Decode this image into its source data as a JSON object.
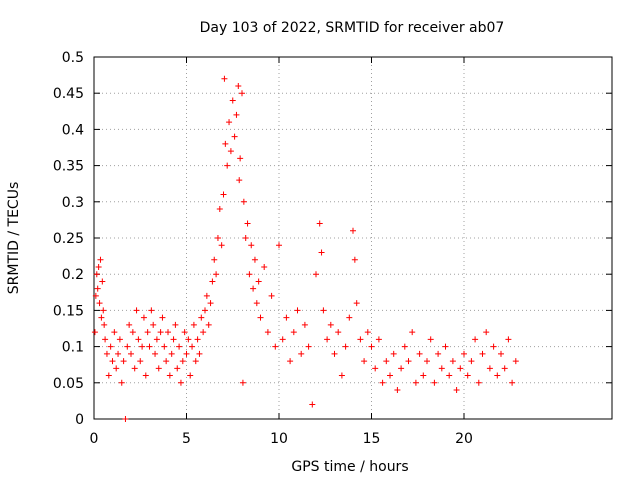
{
  "chart_data": {
    "type": "scatter",
    "title": "Day 103 of 2022, SRMTID for receiver ab07",
    "xlabel": "GPS time / hours",
    "ylabel": "SRMTID / TECUs",
    "xlim": [
      0,
      28
    ],
    "ylim": [
      0,
      0.5
    ],
    "xticks": [
      0,
      5,
      10,
      15,
      20
    ],
    "xtick_labels": [
      "0",
      "5",
      "10",
      "15",
      "20"
    ],
    "yticks": [
      0,
      0.05,
      0.1,
      0.15,
      0.2,
      0.25,
      0.3,
      0.35,
      0.4,
      0.45,
      0.5
    ],
    "ytick_labels": [
      "0",
      "0.05",
      "0.1",
      "0.15",
      "0.2",
      "0.25",
      "0.3",
      "0.35",
      "0.4",
      "0.45",
      "0.5"
    ],
    "grid": true,
    "marker": "+",
    "color": "#ff0000",
    "series": [
      {
        "name": "SRMTID ab07",
        "points": [
          [
            0.05,
            0.12
          ],
          [
            0.1,
            0.17
          ],
          [
            0.15,
            0.2
          ],
          [
            0.2,
            0.18
          ],
          [
            0.25,
            0.21
          ],
          [
            0.3,
            0.16
          ],
          [
            0.35,
            0.22
          ],
          [
            0.4,
            0.14
          ],
          [
            0.45,
            0.19
          ],
          [
            0.5,
            0.15
          ],
          [
            0.55,
            0.13
          ],
          [
            0.6,
            0.11
          ],
          [
            0.7,
            0.09
          ],
          [
            0.8,
            0.06
          ],
          [
            0.9,
            0.1
          ],
          [
            1.0,
            0.08
          ],
          [
            1.1,
            0.12
          ],
          [
            1.2,
            0.07
          ],
          [
            1.3,
            0.09
          ],
          [
            1.4,
            0.11
          ],
          [
            1.5,
            0.05
          ],
          [
            1.6,
            0.08
          ],
          [
            1.7,
            0.0
          ],
          [
            1.8,
            0.1
          ],
          [
            1.9,
            0.13
          ],
          [
            2.0,
            0.09
          ],
          [
            2.1,
            0.12
          ],
          [
            2.2,
            0.07
          ],
          [
            2.3,
            0.15
          ],
          [
            2.4,
            0.11
          ],
          [
            2.5,
            0.08
          ],
          [
            2.6,
            0.1
          ],
          [
            2.7,
            0.14
          ],
          [
            2.8,
            0.06
          ],
          [
            2.9,
            0.12
          ],
          [
            3.0,
            0.1
          ],
          [
            3.1,
            0.15
          ],
          [
            3.2,
            0.13
          ],
          [
            3.3,
            0.09
          ],
          [
            3.4,
            0.11
          ],
          [
            3.5,
            0.07
          ],
          [
            3.6,
            0.12
          ],
          [
            3.7,
            0.14
          ],
          [
            3.8,
            0.1
          ],
          [
            3.9,
            0.08
          ],
          [
            4.0,
            0.12
          ],
          [
            4.1,
            0.06
          ],
          [
            4.2,
            0.09
          ],
          [
            4.3,
            0.11
          ],
          [
            4.4,
            0.13
          ],
          [
            4.5,
            0.07
          ],
          [
            4.6,
            0.1
          ],
          [
            4.7,
            0.05
          ],
          [
            4.8,
            0.08
          ],
          [
            4.9,
            0.12
          ],
          [
            5.0,
            0.09
          ],
          [
            5.1,
            0.11
          ],
          [
            5.2,
            0.06
          ],
          [
            5.3,
            0.1
          ],
          [
            5.4,
            0.13
          ],
          [
            5.5,
            0.08
          ],
          [
            5.6,
            0.11
          ],
          [
            5.7,
            0.09
          ],
          [
            5.8,
            0.14
          ],
          [
            5.9,
            0.12
          ],
          [
            6.0,
            0.15
          ],
          [
            6.1,
            0.17
          ],
          [
            6.2,
            0.13
          ],
          [
            6.3,
            0.16
          ],
          [
            6.4,
            0.19
          ],
          [
            6.5,
            0.22
          ],
          [
            6.6,
            0.2
          ],
          [
            6.7,
            0.25
          ],
          [
            6.8,
            0.29
          ],
          [
            6.9,
            0.24
          ],
          [
            7.0,
            0.31
          ],
          [
            7.05,
            0.47
          ],
          [
            7.1,
            0.38
          ],
          [
            7.2,
            0.35
          ],
          [
            7.3,
            0.41
          ],
          [
            7.4,
            0.37
          ],
          [
            7.5,
            0.44
          ],
          [
            7.6,
            0.39
          ],
          [
            7.7,
            0.42
          ],
          [
            7.8,
            0.46
          ],
          [
            7.85,
            0.33
          ],
          [
            7.9,
            0.36
          ],
          [
            8.0,
            0.45
          ],
          [
            8.05,
            0.05
          ],
          [
            8.1,
            0.3
          ],
          [
            8.2,
            0.25
          ],
          [
            8.3,
            0.27
          ],
          [
            8.4,
            0.2
          ],
          [
            8.5,
            0.24
          ],
          [
            8.6,
            0.18
          ],
          [
            8.7,
            0.22
          ],
          [
            8.8,
            0.16
          ],
          [
            8.9,
            0.19
          ],
          [
            9.0,
            0.14
          ],
          [
            9.2,
            0.21
          ],
          [
            9.4,
            0.12
          ],
          [
            9.6,
            0.17
          ],
          [
            9.8,
            0.1
          ],
          [
            10.0,
            0.24
          ],
          [
            10.2,
            0.11
          ],
          [
            10.4,
            0.14
          ],
          [
            10.6,
            0.08
          ],
          [
            10.8,
            0.12
          ],
          [
            11.0,
            0.15
          ],
          [
            11.2,
            0.09
          ],
          [
            11.4,
            0.13
          ],
          [
            11.6,
            0.1
          ],
          [
            11.8,
            0.02
          ],
          [
            12.0,
            0.2
          ],
          [
            12.2,
            0.27
          ],
          [
            12.3,
            0.23
          ],
          [
            12.4,
            0.15
          ],
          [
            12.6,
            0.11
          ],
          [
            12.8,
            0.13
          ],
          [
            13.0,
            0.09
          ],
          [
            13.2,
            0.12
          ],
          [
            13.4,
            0.06
          ],
          [
            13.6,
            0.1
          ],
          [
            13.8,
            0.14
          ],
          [
            14.0,
            0.26
          ],
          [
            14.1,
            0.22
          ],
          [
            14.2,
            0.16
          ],
          [
            14.4,
            0.11
          ],
          [
            14.6,
            0.08
          ],
          [
            14.8,
            0.12
          ],
          [
            15.0,
            0.1
          ],
          [
            15.2,
            0.07
          ],
          [
            15.4,
            0.11
          ],
          [
            15.6,
            0.05
          ],
          [
            15.8,
            0.08
          ],
          [
            16.0,
            0.06
          ],
          [
            16.2,
            0.09
          ],
          [
            16.4,
            0.04
          ],
          [
            16.6,
            0.07
          ],
          [
            16.8,
            0.1
          ],
          [
            17.0,
            0.08
          ],
          [
            17.2,
            0.12
          ],
          [
            17.4,
            0.05
          ],
          [
            17.6,
            0.09
          ],
          [
            17.8,
            0.06
          ],
          [
            18.0,
            0.08
          ],
          [
            18.2,
            0.11
          ],
          [
            18.4,
            0.05
          ],
          [
            18.6,
            0.09
          ],
          [
            18.8,
            0.07
          ],
          [
            19.0,
            0.1
          ],
          [
            19.2,
            0.06
          ],
          [
            19.4,
            0.08
          ],
          [
            19.6,
            0.04
          ],
          [
            19.8,
            0.07
          ],
          [
            20.0,
            0.09
          ],
          [
            20.2,
            0.06
          ],
          [
            20.4,
            0.08
          ],
          [
            20.6,
            0.11
          ],
          [
            20.8,
            0.05
          ],
          [
            21.0,
            0.09
          ],
          [
            21.2,
            0.12
          ],
          [
            21.4,
            0.07
          ],
          [
            21.6,
            0.1
          ],
          [
            21.8,
            0.06
          ],
          [
            22.0,
            0.09
          ],
          [
            22.2,
            0.07
          ],
          [
            22.4,
            0.11
          ],
          [
            22.6,
            0.05
          ],
          [
            22.8,
            0.08
          ]
        ]
      }
    ]
  }
}
